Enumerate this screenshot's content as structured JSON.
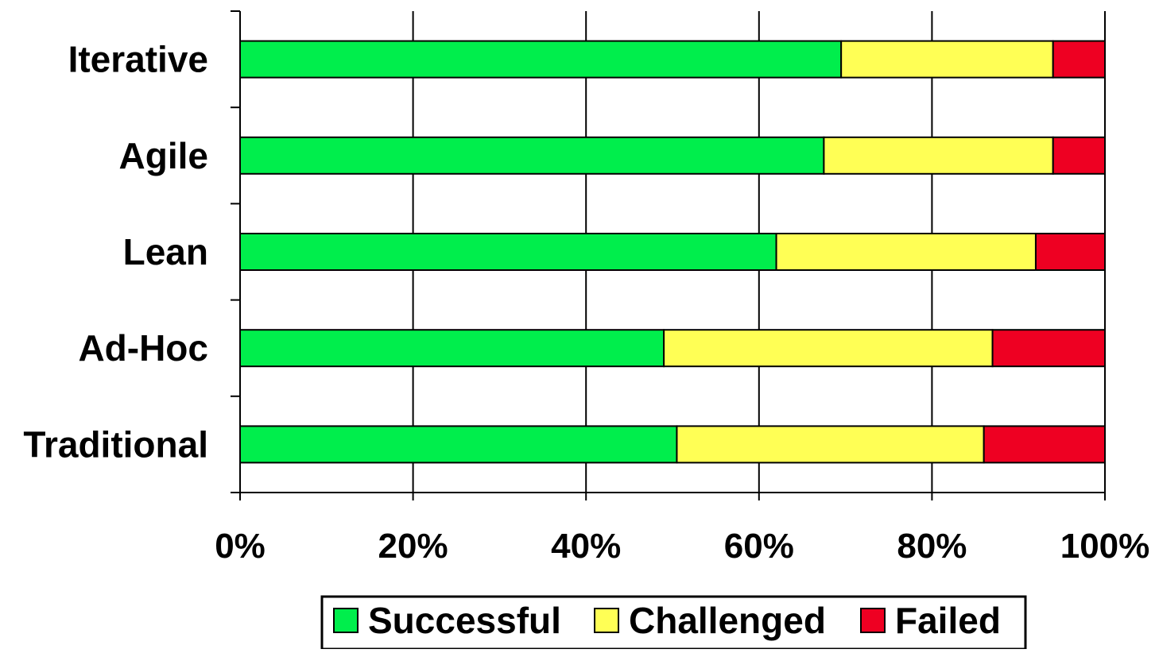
{
  "chart_data": {
    "type": "bar",
    "orientation": "horizontal",
    "stacked": true,
    "percent_stacked": true,
    "categories": [
      "Iterative",
      "Agile",
      "Lean",
      "Ad-Hoc",
      "Traditional"
    ],
    "series": [
      {
        "name": "Successful",
        "color": "#00ee4c",
        "values": [
          69.5,
          67.5,
          62.0,
          49.0,
          50.5
        ]
      },
      {
        "name": "Challenged",
        "color": "#ffff55",
        "values": [
          24.5,
          26.5,
          30.0,
          38.0,
          35.5
        ]
      },
      {
        "name": "Failed",
        "color": "#ee0022",
        "values": [
          6.0,
          6.0,
          8.0,
          13.0,
          14.0
        ]
      }
    ],
    "xlim": [
      0,
      100
    ],
    "xticks": [
      "0%",
      "20%",
      "40%",
      "60%",
      "80%",
      "100%"
    ],
    "grid": "vertical",
    "legend": "bottom",
    "title": "",
    "xlabel": "",
    "ylabel": ""
  }
}
